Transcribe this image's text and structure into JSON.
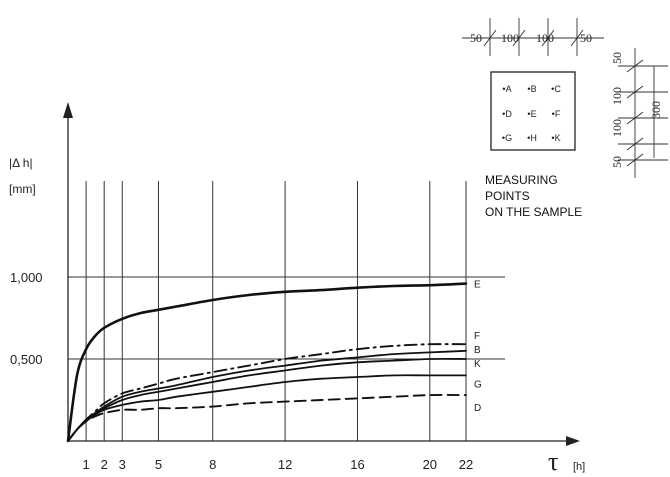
{
  "chart_data": {
    "type": "line",
    "title": "",
    "ylabel": "|Δ h|",
    "ylabel_unit": "[mm]",
    "xlabel": "τ",
    "xlabel_unit": "[h]",
    "x_ticks": [
      1,
      2,
      3,
      5,
      8,
      12,
      16,
      20,
      22
    ],
    "y_ticks": [
      {
        "value": 0.5,
        "label": "0,500"
      },
      {
        "value": 1.0,
        "label": "1,000"
      }
    ],
    "xlim": [
      0,
      22
    ],
    "ylim": [
      0,
      1.0
    ],
    "grid": true,
    "x": [
      0,
      0.5,
      1,
      1.5,
      2,
      3,
      4,
      5,
      6,
      8,
      10,
      12,
      14,
      16,
      18,
      20,
      22
    ],
    "series": [
      {
        "name": "E",
        "style": "solid-bold",
        "values": [
          0,
          0.4,
          0.56,
          0.64,
          0.69,
          0.745,
          0.78,
          0.8,
          0.82,
          0.86,
          0.89,
          0.91,
          0.92,
          0.935,
          0.945,
          0.95,
          0.96
        ]
      },
      {
        "name": "F",
        "style": "dash-dot",
        "values": [
          0,
          0.07,
          0.13,
          0.18,
          0.23,
          0.29,
          0.32,
          0.35,
          0.38,
          0.42,
          0.46,
          0.5,
          0.53,
          0.56,
          0.58,
          0.59,
          0.59
        ]
      },
      {
        "name": "B",
        "style": "solid",
        "values": [
          0,
          0.07,
          0.13,
          0.17,
          0.21,
          0.27,
          0.3,
          0.32,
          0.34,
          0.39,
          0.43,
          0.46,
          0.49,
          0.51,
          0.53,
          0.54,
          0.55
        ]
      },
      {
        "name": "K",
        "style": "solid",
        "values": [
          0,
          0.07,
          0.13,
          0.17,
          0.2,
          0.25,
          0.28,
          0.3,
          0.32,
          0.36,
          0.4,
          0.43,
          0.46,
          0.48,
          0.49,
          0.5,
          0.5
        ]
      },
      {
        "name": "G",
        "style": "solid",
        "values": [
          0,
          0.07,
          0.12,
          0.16,
          0.19,
          0.22,
          0.24,
          0.25,
          0.27,
          0.3,
          0.33,
          0.36,
          0.38,
          0.39,
          0.4,
          0.4,
          0.4
        ]
      },
      {
        "name": "D",
        "style": "dashed",
        "values": [
          0,
          0.07,
          0.12,
          0.15,
          0.17,
          0.19,
          0.19,
          0.2,
          0.2,
          0.21,
          0.23,
          0.24,
          0.25,
          0.26,
          0.27,
          0.28,
          0.28
        ]
      }
    ]
  },
  "annotation": {
    "lines": [
      "MEASURING",
      "POINTS",
      "ON THE SAMPLE"
    ]
  },
  "sample_diagram": {
    "horizontal_dims": [
      "50",
      "100",
      "100",
      "50"
    ],
    "vertical_dims": [
      "50",
      "100",
      "100",
      "50"
    ],
    "total_dim": "300",
    "points": [
      [
        "A",
        "B",
        "C"
      ],
      [
        "D",
        "E",
        "F"
      ],
      [
        "G",
        "H",
        "K"
      ]
    ]
  }
}
